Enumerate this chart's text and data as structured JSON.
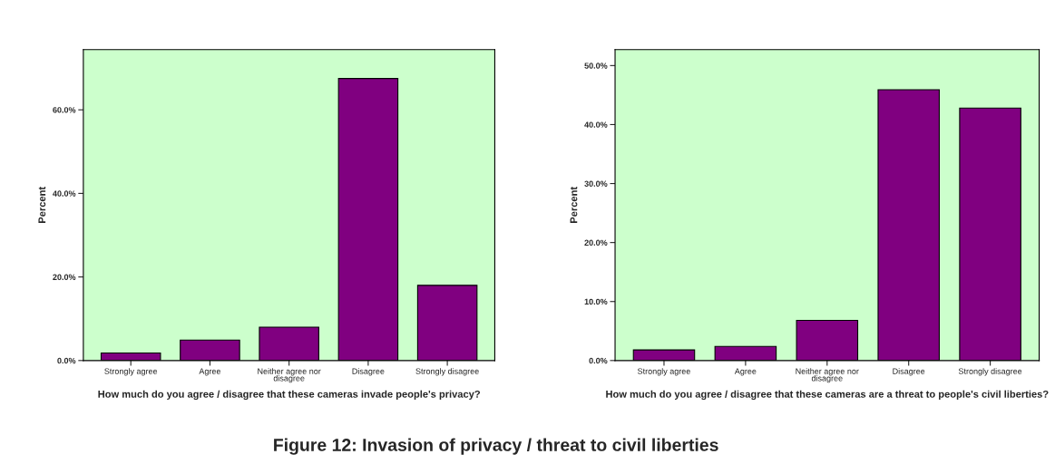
{
  "chart_data": [
    {
      "type": "bar",
      "xlabel": "How much do you agree / disagree that these cameras invade people's privacy?",
      "ylabel": "Percent",
      "categories": [
        "Strongly agree",
        "Agree",
        "Neither agree nor disagree",
        "Disagree",
        "Strongly disagree"
      ],
      "values": [
        1.8,
        4.9,
        8.0,
        67.5,
        18.0
      ],
      "color": "#800080",
      "ylim": [
        0,
        74.4
      ],
      "yticks": [
        {
          "value": 0,
          "label": "0.0%"
        },
        {
          "value": 20,
          "label": "20.0%"
        },
        {
          "value": 40,
          "label": "40.0%"
        },
        {
          "value": 60,
          "label": "60.0%"
        }
      ],
      "grid": false,
      "legend": false,
      "annotations": [
        "Figure 12: Invasion of privacy / threat to civil liberties"
      ]
    },
    {
      "type": "bar",
      "xlabel": "How much do you agree / disagree that these cameras are a threat to people's civil liberties?",
      "ylabel": "Percent",
      "categories": [
        "Strongly agree",
        "Agree",
        "Neither agree nor disagree",
        "Disagree",
        "Strongly disagree"
      ],
      "values": [
        1.8,
        2.4,
        6.8,
        45.9,
        42.8
      ],
      "color": "#800080",
      "ylim": [
        0,
        52.7
      ],
      "yticks": [
        {
          "value": 0,
          "label": "0.0%"
        },
        {
          "value": 10,
          "label": "10.0%"
        },
        {
          "value": 20,
          "label": "20.0%"
        },
        {
          "value": 30,
          "label": "30.0%"
        },
        {
          "value": 40,
          "label": "40.0%"
        },
        {
          "value": 50,
          "label": "50.0%"
        }
      ],
      "grid": false,
      "legend": false
    }
  ]
}
